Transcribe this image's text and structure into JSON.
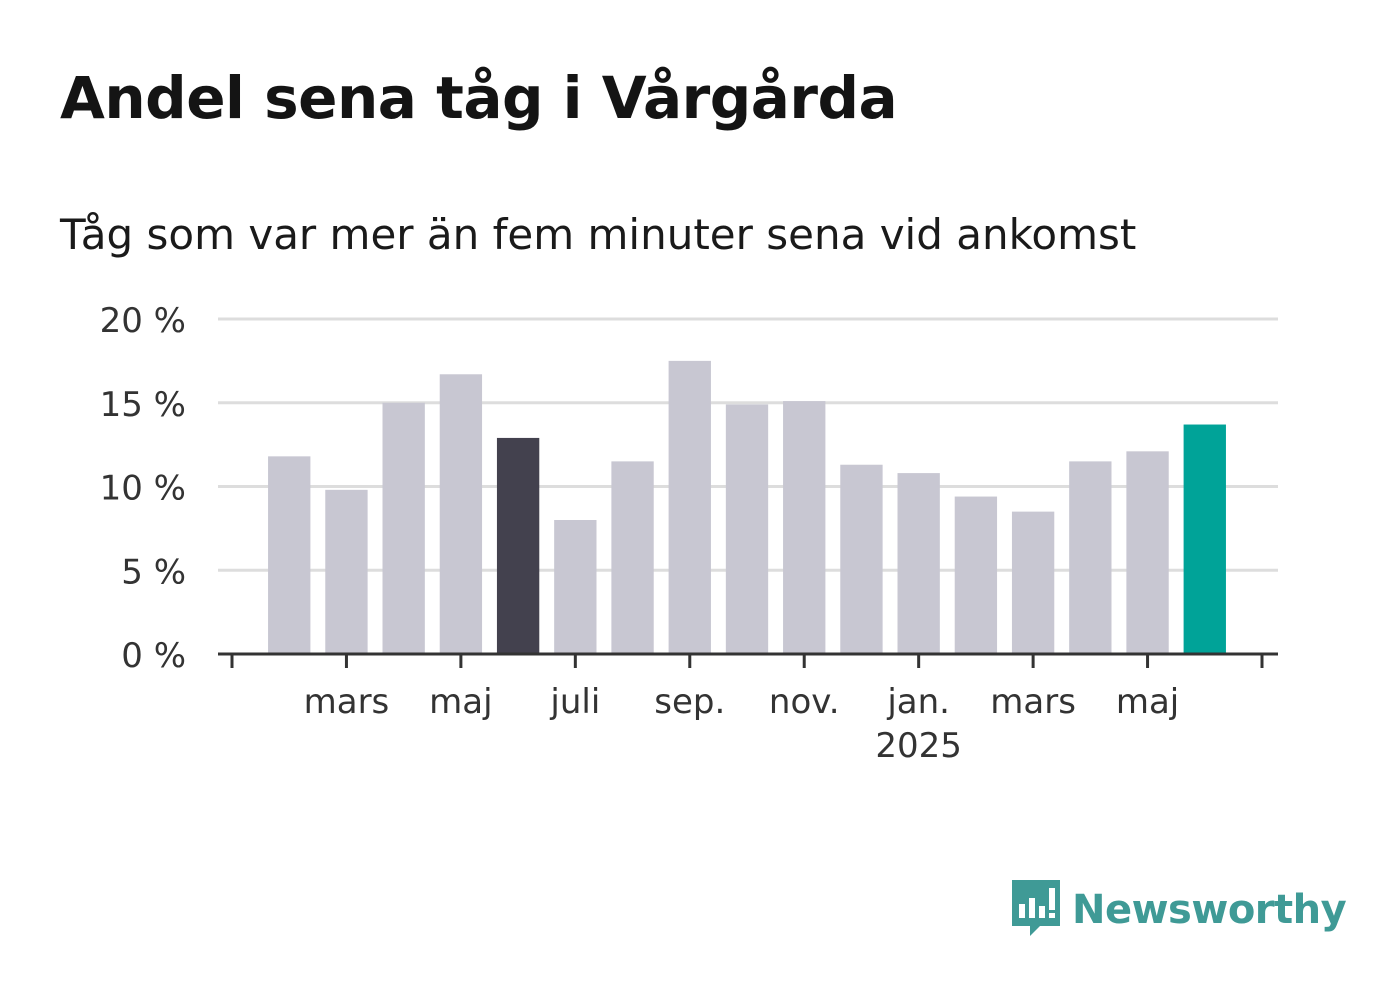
{
  "header": {
    "title": "Andel sena tåg i Vårgårda",
    "subtitle": "Tåg som var mer än fem minuter sena vid ankomst"
  },
  "chart_data": {
    "type": "bar",
    "title": "Andel sena tåg i Vårgårda",
    "subtitle": "Tåg som var mer än fem minuter sena vid ankomst",
    "xlabel": "",
    "ylabel": "",
    "ylim": [
      0,
      20
    ],
    "y_ticks": [
      0,
      5,
      10,
      15,
      20
    ],
    "y_tick_labels": [
      "0 %",
      "5 %",
      "10 %",
      "15 %",
      "20 %"
    ],
    "grid": true,
    "categories": [
      "2024-02",
      "2024-03",
      "2024-04",
      "2024-05",
      "2024-06",
      "2024-07",
      "2024-08",
      "2024-09",
      "2024-10",
      "2024-11",
      "2024-12",
      "2025-01",
      "2025-02",
      "2025-03",
      "2025-04",
      "2025-05",
      "2025-06"
    ],
    "values": [
      11.8,
      9.8,
      15.0,
      16.7,
      12.9,
      8.0,
      11.5,
      17.5,
      14.9,
      15.1,
      11.3,
      10.8,
      9.4,
      8.5,
      11.5,
      12.1,
      13.7
    ],
    "highlight": {
      "index_dark": 4,
      "index_accent": 16
    },
    "x_tick_labels": [
      {
        "category": "2024-03",
        "label": "mars",
        "sublabel": ""
      },
      {
        "category": "2024-05",
        "label": "maj",
        "sublabel": ""
      },
      {
        "category": "2024-07",
        "label": "juli",
        "sublabel": ""
      },
      {
        "category": "2024-09",
        "label": "sep.",
        "sublabel": ""
      },
      {
        "category": "2024-11",
        "label": "nov.",
        "sublabel": ""
      },
      {
        "category": "2025-01",
        "label": "jan.",
        "sublabel": "2025"
      },
      {
        "category": "2025-03",
        "label": "mars",
        "sublabel": ""
      },
      {
        "category": "2025-05",
        "label": "maj",
        "sublabel": ""
      }
    ],
    "colors": {
      "default": "#c8c7d2",
      "dark": "#43414e",
      "accent": "#00a398",
      "grid": "#dddddd",
      "axis": "#333333"
    }
  },
  "logo": {
    "text": "Newsworthy",
    "icon": "newsworthy-chart-icon",
    "color": "#3f9a96"
  }
}
